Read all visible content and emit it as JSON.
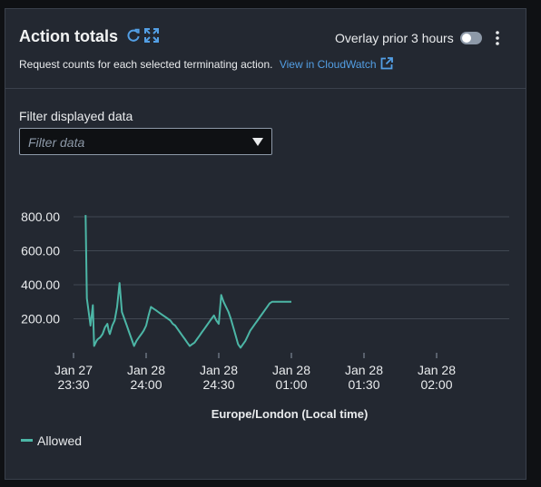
{
  "widget": {
    "title": "Action totals",
    "subtitle": "Request counts for each selected terminating action.",
    "cloudwatch_link": "View in CloudWatch",
    "overlay_label": "Overlay prior 3 hours",
    "overlay_enabled": false
  },
  "filter": {
    "label": "Filter displayed data",
    "placeholder": "Filter data"
  },
  "colors": {
    "accent_series": "#4cb6a6",
    "link": "#539fe5"
  },
  "chart_data": {
    "type": "line",
    "xlabel": "Europe/London (Local time)",
    "y_ticks": [
      "800.00",
      "600.00",
      "400.00",
      "200.00"
    ],
    "y_tick_values": [
      800,
      600,
      400,
      200
    ],
    "x_ticks": [
      {
        "line1": "Jan 27",
        "line2": "23:30"
      },
      {
        "line1": "Jan 28",
        "line2": "24:00"
      },
      {
        "line1": "Jan 28",
        "line2": "24:30"
      },
      {
        "line1": "Jan 28",
        "line2": "01:00"
      },
      {
        "line1": "Jan 28",
        "line2": "01:30"
      },
      {
        "line1": "Jan 28",
        "line2": "02:00"
      }
    ],
    "x_tick_minutes": [
      0,
      30,
      60,
      90,
      120,
      150
    ],
    "x_range_minutes": [
      0,
      150
    ],
    "ylim": [
      0,
      800
    ],
    "series": [
      {
        "name": "Allowed",
        "x_minutes": [
          5,
          5.5,
          7,
          8,
          8.5,
          9,
          9.5,
          10,
          11,
          12,
          13,
          14,
          14.5,
          15,
          16,
          17,
          18,
          19,
          20,
          21,
          22,
          23,
          24,
          25,
          26,
          27,
          28,
          29,
          30,
          31,
          32,
          33,
          34,
          35,
          36,
          37,
          38,
          39,
          40,
          41,
          42,
          43,
          44,
          45,
          46,
          47,
          48,
          49,
          50,
          51,
          52,
          53,
          54,
          55,
          56,
          57,
          58,
          59,
          60,
          61,
          62,
          63,
          64,
          65,
          66,
          67,
          68,
          69,
          70,
          71,
          72,
          73,
          74,
          75,
          76,
          77,
          78,
          79,
          80,
          81,
          82,
          83,
          84,
          85,
          86,
          87,
          88,
          89,
          90
        ],
        "values": [
          810,
          320,
          160,
          280,
          40,
          55,
          70,
          80,
          90,
          110,
          150,
          170,
          130,
          110,
          160,
          190,
          270,
          410,
          240,
          200,
          160,
          120,
          80,
          40,
          70,
          90,
          110,
          130,
          160,
          220,
          270,
          260,
          250,
          240,
          230,
          220,
          210,
          200,
          190,
          170,
          160,
          140,
          120,
          100,
          80,
          60,
          40,
          50,
          60,
          80,
          100,
          120,
          140,
          160,
          180,
          200,
          220,
          190,
          170,
          340,
          300,
          270,
          240,
          200,
          150,
          100,
          50,
          30,
          50,
          70,
          100,
          130,
          150,
          170,
          190,
          210,
          230,
          250,
          270,
          290,
          300,
          300,
          300,
          300,
          300,
          300,
          300,
          300,
          300
        ],
        "color": "#4cb6a6"
      }
    ]
  }
}
